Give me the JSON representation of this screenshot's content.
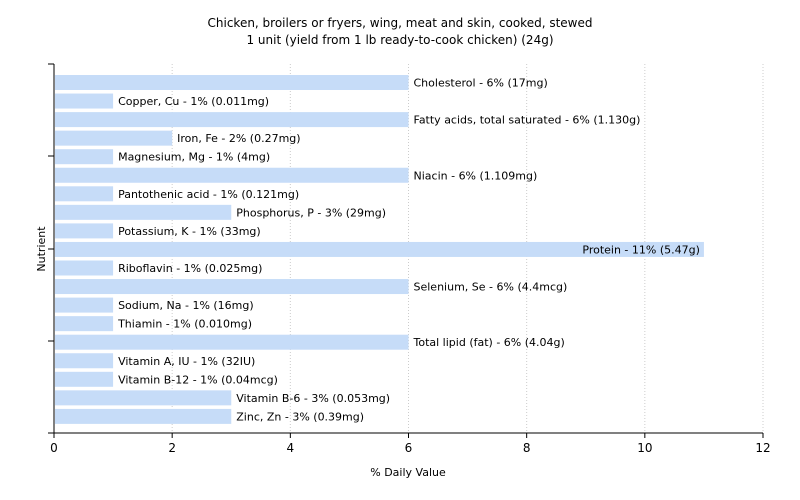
{
  "chart_data": {
    "type": "bar",
    "orientation": "horizontal",
    "title": "Chicken, broilers or fryers, wing, meat and skin, cooked, stewed",
    "subtitle": "1 unit (yield from 1 lb ready-to-cook chicken) (24g)",
    "xlabel": "% Daily Value",
    "ylabel": "Nutrient",
    "xlim": [
      0,
      12
    ],
    "xticks": [
      "0",
      "2",
      "4",
      "6",
      "8",
      "10",
      "12"
    ],
    "grid": "vertical",
    "bar_color": "#c6dcf8",
    "categories": [
      "Cholesterol",
      "Copper, Cu",
      "Fatty acids, total saturated",
      "Iron, Fe",
      "Magnesium, Mg",
      "Niacin",
      "Pantothenic acid",
      "Phosphorus, P",
      "Potassium, K",
      "Protein",
      "Riboflavin",
      "Selenium, Se",
      "Sodium, Na",
      "Thiamin",
      "Total lipid (fat)",
      "Vitamin A, IU",
      "Vitamin B-12",
      "Vitamin B-6",
      "Zinc, Zn"
    ],
    "values": [
      6,
      1,
      6,
      2,
      1,
      6,
      1,
      3,
      1,
      11,
      1,
      6,
      1,
      1,
      6,
      1,
      1,
      3,
      3
    ],
    "labels": [
      "Cholesterol - 6% (17mg)",
      "Copper, Cu - 1% (0.011mg)",
      "Fatty acids, total saturated - 6% (1.130g)",
      "Iron, Fe - 2% (0.27mg)",
      "Magnesium, Mg - 1% (4mg)",
      "Niacin - 6% (1.109mg)",
      "Pantothenic acid - 1% (0.121mg)",
      "Phosphorus, P - 3% (29mg)",
      "Potassium, K - 1% (33mg)",
      "Protein - 11% (5.47g)",
      "Riboflavin - 1% (0.025mg)",
      "Selenium, Se - 6% (4.4mcg)",
      "Sodium, Na - 1% (16mg)",
      "Thiamin - 1% (0.010mg)",
      "Total lipid (fat) - 6% (4.04g)",
      "Vitamin A, IU - 1% (32IU)",
      "Vitamin B-12 - 1% (0.04mcg)",
      "Vitamin B-6 - 3% (0.053mg)",
      "Zinc, Zn - 3% (0.39mg)"
    ]
  }
}
